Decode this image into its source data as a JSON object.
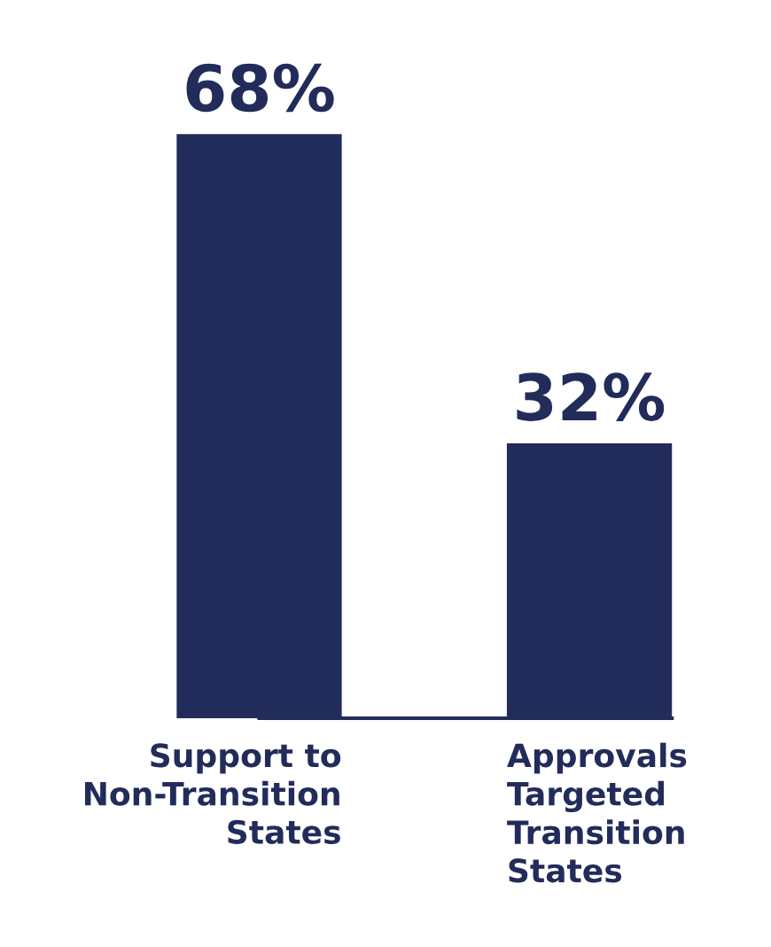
{
  "chart_data": {
    "type": "bar",
    "categories": [
      "Support to\nNon-Transition\nStates",
      "Approvals\nTargeted\nTransition\nStates"
    ],
    "values": [
      68,
      32
    ],
    "value_labels": [
      "68%",
      "32%"
    ],
    "color": "#222c5a"
  }
}
